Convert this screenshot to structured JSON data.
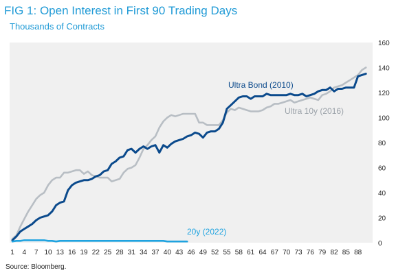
{
  "header": {
    "title": "FIG 1: Open Interest in First 90 Trading Days",
    "subtitle": "Thousands  of Contracts"
  },
  "footer": {
    "source": "Source: Bloomberg."
  },
  "colors": {
    "background_panel": "#f0f0f0",
    "ultra_bond": "#0b4a8c",
    "ultra_10y": "#b8bec4",
    "twenty_y": "#1fa3e0",
    "title": "#1f9ad6"
  },
  "chart_data": {
    "type": "line",
    "title": "FIG 1: Open Interest in First 90 Trading Days",
    "subtitle": "Thousands  of Contracts",
    "xlabel": "",
    "ylabel": "",
    "x_tick_labels": [
      "1",
      "4",
      "7",
      "10",
      "13",
      "16",
      "19",
      "22",
      "25",
      "28",
      "31",
      "34",
      "37",
      "40",
      "43",
      "46",
      "49",
      "52",
      "55",
      "58",
      "61",
      "64",
      "67",
      "70",
      "73",
      "76",
      "79",
      "82",
      "85",
      "88"
    ],
    "y_ticks": [
      0,
      20,
      40,
      60,
      80,
      100,
      120,
      140,
      160
    ],
    "xlim": [
      1,
      91
    ],
    "ylim": [
      0,
      160
    ],
    "grid": false,
    "series": [
      {
        "name": "Ultra Bond (2010)",
        "key": "ultra_bond",
        "values": [
          2,
          5,
          9,
          11,
          13,
          15,
          18,
          20,
          21,
          22,
          25,
          30,
          32,
          33,
          42,
          46,
          48,
          49,
          50,
          50,
          51,
          53,
          54,
          57,
          58,
          63,
          65,
          68,
          69,
          74,
          75,
          72,
          75,
          77,
          75,
          77,
          78,
          72,
          78,
          76,
          79,
          81,
          82,
          83,
          85,
          86,
          88,
          87,
          84,
          88,
          89,
          89,
          91,
          96,
          107,
          110,
          113,
          116,
          117,
          117,
          115,
          117,
          117,
          117,
          119,
          118,
          118,
          118,
          118,
          118,
          119,
          118,
          118,
          119,
          117,
          118,
          119,
          121,
          122,
          122,
          124,
          121,
          123,
          123,
          124,
          124,
          124,
          133,
          134,
          135
        ]
      },
      {
        "name": "Ultra 10y (2016)",
        "key": "ultra_10y",
        "values": [
          3,
          6,
          13,
          19,
          25,
          30,
          35,
          38,
          40,
          46,
          50,
          52,
          52,
          56,
          56,
          57,
          58,
          58,
          55,
          57,
          54,
          53,
          52,
          52,
          52,
          49,
          50,
          51,
          56,
          59,
          60,
          62,
          68,
          75,
          78,
          82,
          85,
          92,
          97,
          100,
          102,
          101,
          102,
          103,
          103,
          103,
          103,
          96,
          96,
          94,
          94,
          94,
          94,
          98,
          104,
          107,
          106,
          108,
          107,
          106,
          105,
          105,
          105,
          106,
          108,
          109,
          111,
          111,
          112,
          113,
          114,
          112,
          113,
          114,
          115,
          116,
          115,
          114,
          118,
          119,
          121,
          124,
          125,
          126,
          128,
          130,
          132,
          134,
          138,
          140
        ]
      },
      {
        "name": "20y (2022)",
        "key": "twenty_y",
        "values": [
          1,
          1.5,
          1.5,
          2,
          2,
          2,
          2,
          2,
          2,
          1.5,
          1.5,
          1,
          1.5,
          1.5,
          1.5,
          1.5,
          1.5,
          1.5,
          1.5,
          1.5,
          1.5,
          1.5,
          1.5,
          1.5,
          1.5,
          1.5,
          1.5,
          1.5,
          1.5,
          1.5,
          1.5,
          1.5,
          1.5,
          1.5,
          1.5,
          1.5,
          1.5,
          1.5,
          1.5,
          1,
          1,
          1,
          1,
          1,
          1
        ]
      }
    ],
    "legend": "inline labels near lines",
    "annotations": [
      {
        "text": "Ultra Bond (2010)",
        "series": "ultra_bond"
      },
      {
        "text": "Ultra 10y (2016)",
        "series": "ultra_10y"
      },
      {
        "text": "20y (2022)",
        "series": "twenty_y"
      }
    ]
  }
}
